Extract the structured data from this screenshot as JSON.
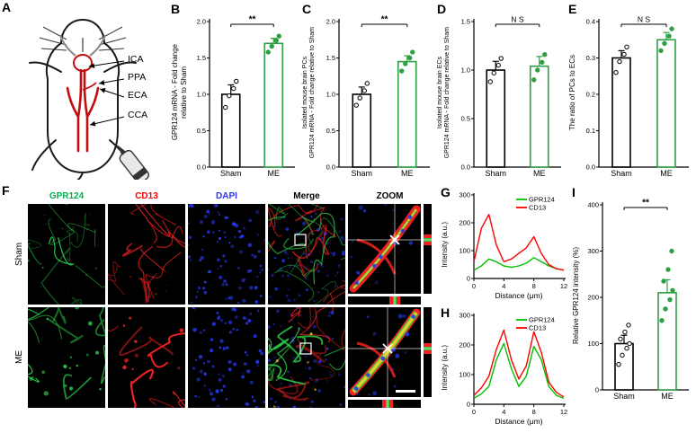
{
  "panels": {
    "a": {
      "label": "A",
      "anatomy_labels": [
        {
          "text": "ICA"
        },
        {
          "text": "PPA"
        },
        {
          "text": "ECA"
        },
        {
          "text": "CCA"
        }
      ]
    },
    "b": {
      "label": "B"
    },
    "c": {
      "label": "C"
    },
    "d": {
      "label": "D"
    },
    "e": {
      "label": "E"
    },
    "f": {
      "label": "F",
      "col_headers": [
        {
          "text": "GPR124",
          "color": "#00b050"
        },
        {
          "text": "CD13",
          "color": "#ff0000"
        },
        {
          "text": "DAPI",
          "color": "#2e2eff"
        },
        {
          "text": "Merge",
          "color": "#000000"
        },
        {
          "text": "ZOOM",
          "color": "#000000"
        }
      ],
      "row_labels": [
        "Sham",
        "ME"
      ]
    },
    "g": {
      "label": "G"
    },
    "h": {
      "label": "H"
    },
    "i": {
      "label": "I"
    }
  },
  "colors": {
    "sham_bar": "#000000",
    "me_bar": "#2f9e44",
    "gpr124_green": "#00c000",
    "cd13_red": "#ff0000",
    "dapi_blue": "#2e2eff"
  },
  "chart_data": [
    {
      "id": "B",
      "type": "bar",
      "categories": [
        "Sham",
        "ME"
      ],
      "values": [
        1.0,
        1.7
      ],
      "errors": [
        0.13,
        0.07
      ],
      "points": [
        [
          0.82,
          0.98,
          1.08,
          1.18
        ],
        [
          1.58,
          1.66,
          1.74,
          1.8
        ]
      ],
      "ylabel": "GPR124 mRNA - Fold change relative to Sham",
      "ylabel_lines": [
        "GPR124 mRNA - Fold change",
        "relative to Sham"
      ],
      "ylim": [
        0,
        2.0
      ],
      "yticks": [
        0,
        0.5,
        1.0,
        1.5,
        2.0
      ],
      "ydec": 1,
      "significance": "**",
      "bar_colors": [
        "#000000",
        "#2f9e44"
      ]
    },
    {
      "id": "C",
      "type": "bar",
      "categories": [
        "Sham",
        "ME"
      ],
      "values": [
        1.0,
        1.45
      ],
      "errors": [
        0.1,
        0.08
      ],
      "points": [
        [
          0.85,
          0.95,
          1.05,
          1.15
        ],
        [
          1.32,
          1.42,
          1.5,
          1.58
        ]
      ],
      "ylabel": "Isolated mouse brain PCs GPR124 mRNA - Fold change relative to Sham",
      "ylabel_lines": [
        "Isolated mouse brain PCs",
        "GPR124 mRNA - Fold change relative to Sham"
      ],
      "ylim": [
        0,
        2.0
      ],
      "yticks": [
        0,
        0.5,
        1.0,
        1.5,
        2.0
      ],
      "ydec": 1,
      "significance": "**",
      "bar_colors": [
        "#000000",
        "#2f9e44"
      ]
    },
    {
      "id": "D",
      "type": "bar",
      "categories": [
        "Sham",
        "ME"
      ],
      "values": [
        1.0,
        1.04
      ],
      "errors": [
        0.09,
        0.1
      ],
      "points": [
        [
          0.88,
          0.97,
          1.05,
          1.12
        ],
        [
          0.9,
          1.0,
          1.08,
          1.16
        ]
      ],
      "ylabel": "Isolated mouse brain ECs GPR124 mRNA - Fold change relative to Sham",
      "ylabel_lines": [
        "Isolated mouse brain ECs",
        "GPR124 mRNA - Fold change relative to Sham"
      ],
      "ylim": [
        0,
        1.5
      ],
      "yticks": [
        0,
        0.5,
        1.0,
        1.5
      ],
      "ydec": 1,
      "significance": "N S",
      "bar_colors": [
        "#000000",
        "#2f9e44"
      ]
    },
    {
      "id": "E",
      "type": "bar",
      "categories": [
        "Sham",
        "ME"
      ],
      "values": [
        0.3,
        0.35
      ],
      "errors": [
        0.02,
        0.02
      ],
      "points": [
        [
          0.26,
          0.29,
          0.31,
          0.33
        ],
        [
          0.32,
          0.34,
          0.36,
          0.38
        ]
      ],
      "ylabel": "The ratio of PCs to ECs",
      "ylabel_lines": [
        "The ratio of PCs to ECs"
      ],
      "ylim": [
        0,
        0.4
      ],
      "yticks": [
        0,
        0.1,
        0.2,
        0.3,
        0.4
      ],
      "ydec": 1,
      "significance": "N S",
      "bar_colors": [
        "#000000",
        "#2f9e44"
      ]
    },
    {
      "id": "G",
      "type": "line",
      "xlabel": "Distance (μm)",
      "ylabel": "Intensity (a.u.)",
      "ylabel_lines": [
        "Intensity (a.u.)"
      ],
      "xlim": [
        0,
        12
      ],
      "ylim": [
        0,
        300
      ],
      "xticks": [
        0,
        4,
        8,
        12
      ],
      "yticks": [
        0,
        100,
        200,
        300
      ],
      "x": [
        0,
        1,
        2,
        3,
        4,
        5,
        6,
        7,
        8,
        9,
        10,
        11,
        12
      ],
      "series": [
        {
          "name": "GPR124",
          "color": "#00c000",
          "y": [
            30,
            45,
            70,
            60,
            45,
            40,
            45,
            55,
            75,
            60,
            45,
            35,
            30
          ]
        },
        {
          "name": "CD13",
          "color": "#ff0000",
          "y": [
            60,
            180,
            230,
            120,
            60,
            70,
            90,
            110,
            150,
            90,
            50,
            35,
            30
          ]
        }
      ]
    },
    {
      "id": "H",
      "type": "line",
      "xlabel": "Distance (μm)",
      "ylabel": "Intensity (a.u.)",
      "ylabel_lines": [
        "Intensity (a.u.)"
      ],
      "xlim": [
        0,
        12
      ],
      "ylim": [
        0,
        300
      ],
      "xticks": [
        0,
        4,
        8,
        12
      ],
      "yticks": [
        0,
        100,
        200,
        300
      ],
      "x": [
        0,
        1,
        2,
        3,
        4,
        5,
        6,
        7,
        8,
        9,
        10,
        11,
        12
      ],
      "series": [
        {
          "name": "GPR124",
          "color": "#00c000",
          "y": [
            20,
            35,
            60,
            150,
            205,
            120,
            60,
            95,
            195,
            150,
            60,
            30,
            20
          ]
        },
        {
          "name": "CD13",
          "color": "#ff0000",
          "y": [
            30,
            55,
            95,
            185,
            250,
            150,
            85,
            130,
            245,
            175,
            75,
            40,
            25
          ]
        }
      ]
    },
    {
      "id": "I",
      "type": "bar",
      "categories": [
        "Sham",
        "ME"
      ],
      "values": [
        100,
        210
      ],
      "errors": [
        18,
        28
      ],
      "points": [
        [
          55,
          75,
          90,
          100,
          110,
          125,
          140
        ],
        [
          150,
          175,
          195,
          215,
          235,
          260,
          300
        ]
      ],
      "ylabel": "Relative GPR124 intensity (%)",
      "ylabel_lines": [
        "Relative GPR124 intensity (%)"
      ],
      "ylim": [
        0,
        400
      ],
      "yticks": [
        0,
        100,
        200,
        300,
        400
      ],
      "ydec": 0,
      "significance": "**",
      "bar_colors": [
        "#000000",
        "#2f9e44"
      ]
    }
  ]
}
